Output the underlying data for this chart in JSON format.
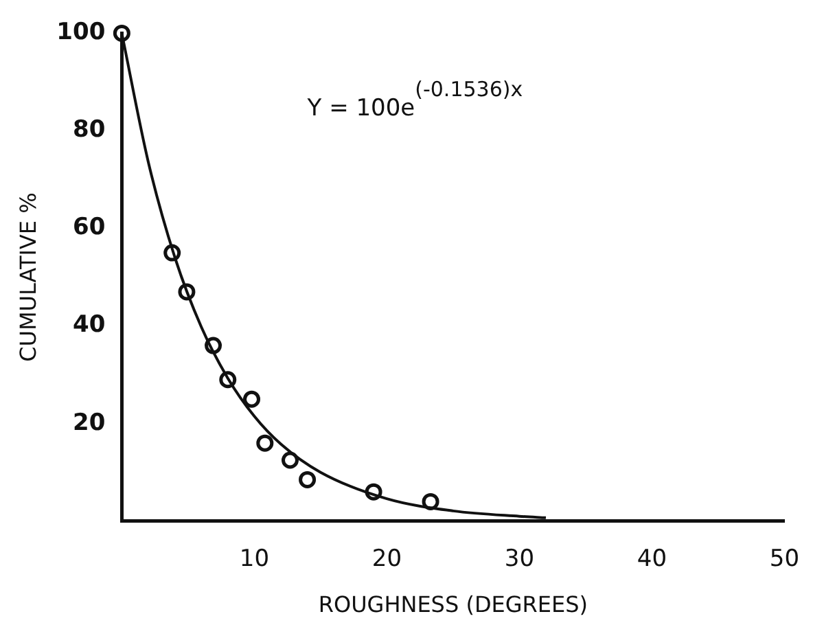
{
  "chart_data": {
    "type": "scatter",
    "xlabel": "ROUGHNESS (DEGREES)",
    "ylabel": "CUMULATIVE %",
    "xlim": [
      0,
      50
    ],
    "ylim": [
      0,
      100
    ],
    "xticks": [
      10,
      20,
      30,
      40,
      50
    ],
    "yticks": [
      20,
      40,
      60,
      80,
      100
    ],
    "grid": false,
    "legend": false,
    "marker": "circle",
    "annotations": [
      "Y = 100e$^{(-0.1536)x}$"
    ],
    "series": [
      {
        "type": "scatter",
        "color": "#111111",
        "x": [
          0,
          3.8,
          4.9,
          6.9,
          8.0,
          9.8,
          10.8,
          12.7,
          14.0,
          19.0,
          23.3
        ],
        "values": [
          100,
          55,
          47,
          36,
          29,
          25,
          16,
          12.5,
          8.5,
          6,
          4
        ]
      },
      {
        "type": "line",
        "color": "#111111",
        "line_style": "solid",
        "marker": "none",
        "x": [
          0,
          2,
          4,
          6,
          8,
          10,
          12,
          15,
          20,
          25,
          30,
          32
        ],
        "values": [
          100,
          73.6,
          54.1,
          39.8,
          29.3,
          21.5,
          15.8,
          10,
          4.6,
          2.1,
          1,
          0.7
        ]
      }
    ]
  }
}
